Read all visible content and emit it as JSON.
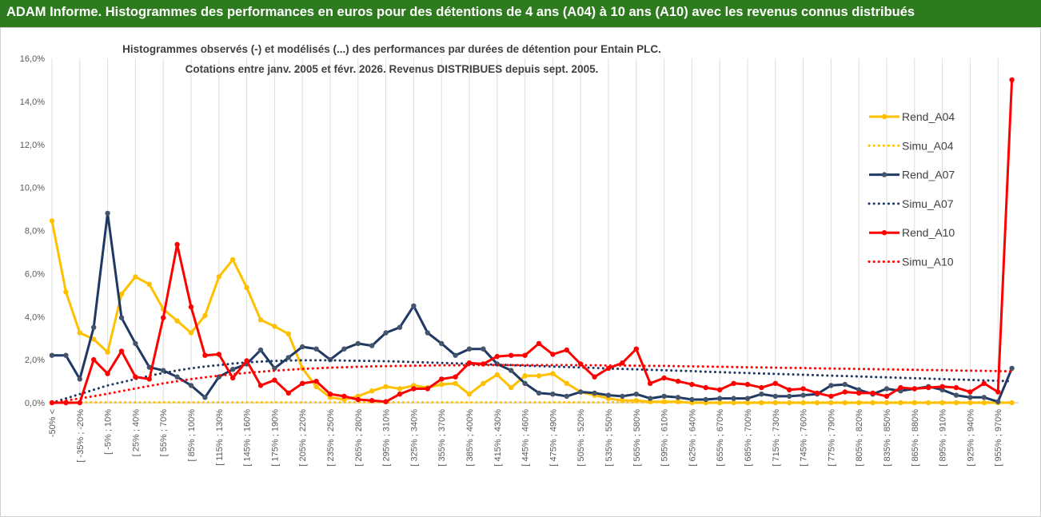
{
  "banner": {
    "title": "ADAM Informe. Histogrammes des performances en euros pour des détentions de 4 ans (A04) à 10 ans (A10) avec les revenus connus distribués",
    "background_color": "#2e7a1e",
    "text_color": "#ffffff"
  },
  "chart_data": {
    "type": "line",
    "title": "Histogrammes observés (-)  et modélisés (...) des performances par durées de détention pour Entain PLC.",
    "subtitle": "Cotations entre janv. 2005 et févr. 2026. Revenus DISTRIBUES depuis sept. 2005.",
    "xlabel": "",
    "ylabel": "",
    "ylim": [
      0,
      16
    ],
    "y_ticks": [
      "0,0%",
      "2,0%",
      "4,0%",
      "6,0%",
      "8,0%",
      "10,0%",
      "12,0%",
      "14,0%",
      "16,0%"
    ],
    "grid": "vertical",
    "legend_position": "right",
    "categories": [
      "-50% <",
      "",
      "[ -35% ; -20%",
      "",
      "[ -5% ; 10%",
      "",
      "[ 25% ; 40%",
      "",
      "[ 55% ; 70%",
      "",
      "[ 85% ; 100%",
      "",
      "[ 115% ; 130%",
      "",
      "[ 145% ; 160%",
      "",
      "[ 175% ; 190%",
      "",
      "[ 205% ; 220%",
      "",
      "[ 235% ; 250%",
      "",
      "[ 265% ; 280%",
      "",
      "[ 295% ; 310%",
      "",
      "[ 325% ; 340%",
      "",
      "[ 355% ; 370%",
      "",
      "[ 385% ; 400%",
      "",
      "[ 415% ; 430%",
      "",
      "[ 445% ; 460%",
      "",
      "[ 475% ; 490%",
      "",
      "[ 505% ; 520%",
      "",
      "[ 535% ; 550%",
      "",
      "[ 565% ; 580%",
      "",
      "[ 595% ; 610%",
      "",
      "[ 625% ; 640%",
      "",
      "[ 655% ; 670%",
      "",
      "[ 685% ; 700%",
      "",
      "[ 715% ; 730%",
      "",
      "[ 745% ; 760%",
      "",
      "[ 775% ; 790%",
      "",
      "[ 805% ; 820%",
      "",
      "[ 835% ; 850%",
      "",
      "[ 865% ; 880%",
      "",
      "[ 895% ; 910%",
      "",
      "[ 925% ; 940%",
      "",
      "[ 955% ; 970%",
      ""
    ],
    "series": [
      {
        "name": "Rend_A04",
        "style": "solid",
        "color": "#ffc000",
        "values": [
          8.45,
          5.15,
          3.25,
          2.95,
          2.35,
          5.05,
          5.85,
          5.5,
          4.35,
          3.8,
          3.25,
          4.05,
          5.85,
          6.65,
          5.35,
          3.85,
          3.55,
          3.2,
          1.6,
          0.75,
          0.25,
          0.15,
          0.3,
          0.55,
          0.75,
          0.65,
          0.8,
          0.7,
          0.85,
          0.9,
          0.4,
          0.9,
          1.3,
          0.7,
          1.25,
          1.25,
          1.35,
          0.9,
          0.5,
          0.35,
          0.2,
          0.1,
          0.1,
          0.05,
          0.05,
          0.05,
          0.0,
          0.0,
          0.0,
          0.0,
          0.0,
          0.0,
          0.0,
          0.0,
          0.0,
          0.0,
          0.0,
          0.0,
          0.0,
          0.0,
          0.0,
          0.0,
          0.0,
          0.0,
          0.0,
          0.0,
          0.0,
          0.0,
          0.0,
          0.0
        ]
      },
      {
        "name": "Simu_A04",
        "style": "dotted",
        "color": "#ffc000",
        "values": [
          0.02,
          0.02,
          0.02,
          0.02,
          0.02,
          0.02,
          0.02,
          0.02,
          0.02,
          0.02,
          0.02,
          0.02,
          0.02,
          0.02,
          0.02,
          0.02,
          0.02,
          0.02,
          0.02,
          0.02,
          0.02,
          0.02,
          0.02,
          0.02,
          0.02,
          0.02,
          0.02,
          0.02,
          0.02,
          0.02,
          0.02,
          0.02,
          0.02,
          0.02,
          0.02,
          0.02,
          0.02,
          0.02,
          0.02,
          0.02,
          0.02,
          0.02,
          0.02,
          0.02,
          0.02,
          0.02,
          0.02,
          0.02,
          0.02,
          0.02,
          0.02,
          0.02,
          0.02,
          0.02,
          0.02,
          0.02,
          0.02,
          0.02,
          0.02,
          0.02,
          0.02,
          0.02,
          0.02,
          0.02,
          0.02,
          0.02,
          0.02,
          0.02,
          0.02,
          0.02
        ]
      },
      {
        "name": "Rend_A07",
        "style": "solid",
        "color": "#1f3864",
        "values": [
          2.2,
          2.2,
          1.1,
          3.5,
          8.8,
          3.95,
          2.75,
          1.65,
          1.5,
          1.2,
          0.8,
          0.25,
          1.2,
          1.55,
          1.8,
          2.45,
          1.6,
          2.1,
          2.6,
          2.5,
          2.0,
          2.5,
          2.75,
          2.65,
          3.25,
          3.5,
          4.5,
          3.25,
          2.75,
          2.2,
          2.5,
          2.5,
          1.8,
          1.5,
          0.9,
          0.45,
          0.4,
          0.3,
          0.5,
          0.45,
          0.35,
          0.3,
          0.4,
          0.2,
          0.3,
          0.25,
          0.15,
          0.15,
          0.2,
          0.2,
          0.2,
          0.4,
          0.3,
          0.3,
          0.35,
          0.4,
          0.8,
          0.85,
          0.6,
          0.4,
          0.65,
          0.55,
          0.65,
          0.75,
          0.6,
          0.35,
          0.25,
          0.25,
          0.05,
          1.6
        ]
      },
      {
        "name": "Simu_A07",
        "style": "dotted",
        "color": "#1f3864",
        "values": [
          0.0,
          0.2,
          0.4,
          0.6,
          0.8,
          0.95,
          1.1,
          1.25,
          1.38,
          1.5,
          1.6,
          1.68,
          1.75,
          1.82,
          1.87,
          1.91,
          1.94,
          1.96,
          1.97,
          1.97,
          1.97,
          1.96,
          1.95,
          1.94,
          1.93,
          1.91,
          1.89,
          1.87,
          1.85,
          1.83,
          1.81,
          1.79,
          1.77,
          1.75,
          1.72,
          1.7,
          1.68,
          1.66,
          1.64,
          1.62,
          1.59,
          1.57,
          1.55,
          1.53,
          1.51,
          1.49,
          1.47,
          1.44,
          1.42,
          1.4,
          1.38,
          1.36,
          1.34,
          1.32,
          1.3,
          1.28,
          1.26,
          1.24,
          1.22,
          1.2,
          1.18,
          1.16,
          1.14,
          1.12,
          1.1,
          1.08,
          1.06,
          1.04,
          1.02,
          1.0
        ]
      },
      {
        "name": "Rend_A10",
        "style": "solid",
        "color": "#ff0000",
        "values": [
          0.0,
          0.0,
          0.0,
          2.0,
          1.35,
          2.4,
          1.2,
          1.1,
          3.95,
          7.35,
          4.45,
          2.2,
          2.25,
          1.15,
          1.95,
          0.8,
          1.05,
          0.45,
          0.9,
          1.0,
          0.4,
          0.3,
          0.15,
          0.1,
          0.05,
          0.4,
          0.65,
          0.65,
          1.1,
          1.2,
          1.85,
          1.8,
          2.15,
          2.2,
          2.2,
          2.75,
          2.25,
          2.45,
          1.8,
          1.2,
          1.6,
          1.85,
          2.5,
          0.9,
          1.15,
          1.0,
          0.85,
          0.7,
          0.6,
          0.9,
          0.85,
          0.7,
          0.9,
          0.6,
          0.65,
          0.45,
          0.3,
          0.5,
          0.45,
          0.45,
          0.3,
          0.7,
          0.65,
          0.7,
          0.75,
          0.7,
          0.5,
          0.9,
          0.5,
          15.0
        ]
      },
      {
        "name": "Simu_A10",
        "style": "dotted",
        "color": "#ff0000",
        "values": [
          0.0,
          0.1,
          0.2,
          0.3,
          0.42,
          0.54,
          0.66,
          0.78,
          0.9,
          1.0,
          1.1,
          1.18,
          1.26,
          1.33,
          1.39,
          1.44,
          1.49,
          1.53,
          1.57,
          1.6,
          1.63,
          1.65,
          1.67,
          1.69,
          1.7,
          1.71,
          1.72,
          1.73,
          1.74,
          1.74,
          1.75,
          1.75,
          1.75,
          1.75,
          1.75,
          1.75,
          1.75,
          1.75,
          1.74,
          1.74,
          1.73,
          1.73,
          1.72,
          1.71,
          1.71,
          1.7,
          1.69,
          1.68,
          1.67,
          1.66,
          1.65,
          1.64,
          1.63,
          1.62,
          1.61,
          1.6,
          1.59,
          1.58,
          1.57,
          1.56,
          1.55,
          1.54,
          1.53,
          1.52,
          1.51,
          1.5,
          1.49,
          1.48,
          1.47,
          1.46
        ]
      }
    ]
  }
}
